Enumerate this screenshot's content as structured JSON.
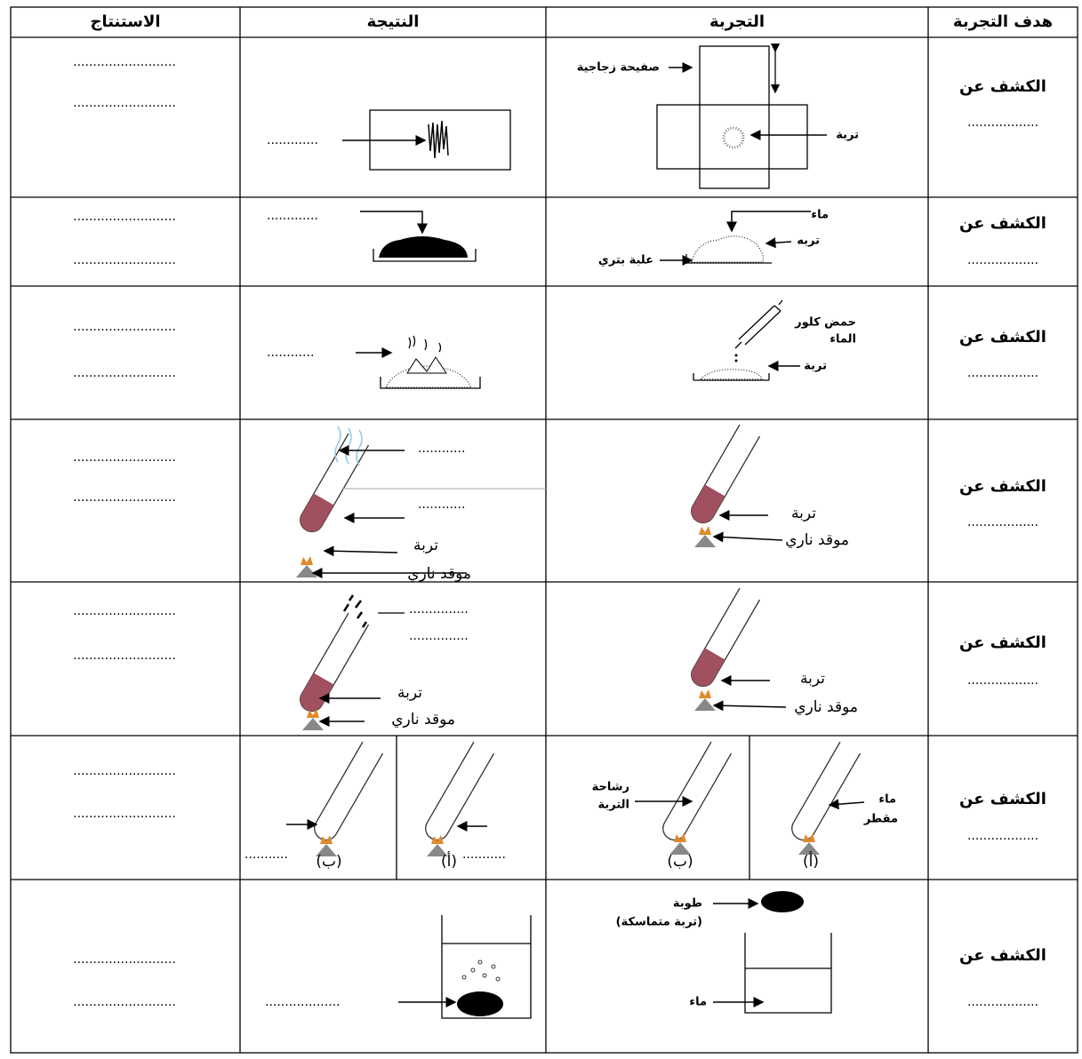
{
  "table": {
    "headers": [
      "الاستنتاج",
      "النتيجة",
      "التجربة",
      "هدف التجربة"
    ],
    "rows": [
      {
        "goal": "الكشف عن",
        "goal_blank": "..................",
        "conclusion": [
          "..........................",
          ".........................."
        ],
        "result_labels": [
          "............."
        ],
        "experiment_labels": [
          "صفيحة زجاجية",
          "تربة"
        ]
      },
      {
        "goal": "الكشف عن",
        "goal_blank": "..................",
        "conclusion": [
          "..........................",
          ".........................."
        ],
        "result_labels": [
          "............."
        ],
        "experiment_labels": [
          "ماء",
          "تربه",
          "علبة بتري"
        ]
      },
      {
        "goal": "الكشف عن",
        "goal_blank": "..................",
        "conclusion": [
          "..........................",
          ".........................."
        ],
        "result_labels": [
          "............"
        ],
        "experiment_labels": [
          "حمض كلور",
          "الماء",
          "تربة"
        ]
      },
      {
        "goal": "الكشف عن",
        "goal_blank": "..................",
        "conclusion": [
          "..........................",
          ".........................."
        ],
        "result_labels": [
          "............",
          "............",
          "تربة",
          "موقد ناري"
        ],
        "experiment_labels": [
          "تربة",
          "موقد ناري"
        ]
      },
      {
        "goal": "الكشف عن",
        "goal_blank": "..................",
        "conclusion": [
          "..........................",
          ".........................."
        ],
        "result_labels": [
          "...............",
          "...............",
          "تربة",
          "موقد ناري"
        ],
        "experiment_labels": [
          "تربة",
          "موقد ناري"
        ]
      },
      {
        "goal": "الكشف عن",
        "goal_blank": "..................",
        "conclusion": [
          "..........................",
          ".........................."
        ],
        "result_labels": [
          "...........",
          "...........",
          "(ب)",
          "(أ)"
        ],
        "experiment_labels": [
          "رشاحة",
          "التربة",
          "ماء",
          "مقطر",
          "(ب)",
          "(أ)"
        ]
      },
      {
        "goal": "الكشف عن",
        "goal_blank": "..................",
        "conclusion": [
          "..........................",
          ".........................."
        ],
        "result_labels": [
          "..................."
        ],
        "experiment_labels": [
          "طوبة",
          "(تربة متماسكة)",
          "ماء"
        ]
      }
    ]
  }
}
